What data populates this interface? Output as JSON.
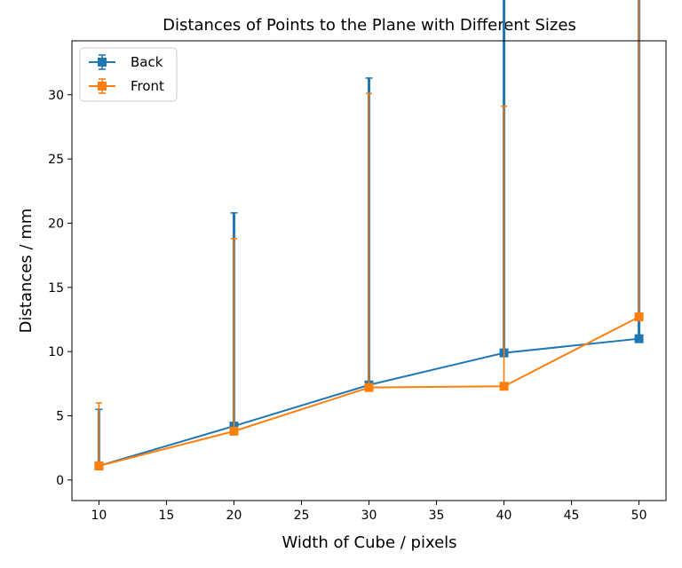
{
  "chart_data": {
    "type": "line",
    "title": "Distances of Points to the Plane with Different Sizes",
    "xlabel": "Width of Cube / pixels",
    "ylabel": "Distances / mm",
    "xlim": [
      8,
      52
    ],
    "ylim": [
      -1.6,
      34.2
    ],
    "xticks": [
      10,
      15,
      20,
      25,
      30,
      35,
      40,
      45,
      50
    ],
    "yticks": [
      0,
      5,
      10,
      15,
      20,
      25,
      30
    ],
    "grid": false,
    "legend_position": "top-left",
    "x": [
      10,
      20,
      30,
      40,
      50
    ],
    "series": [
      {
        "name": "Back",
        "color": "#1f77b4",
        "marker": "square",
        "values": [
          1.1,
          4.2,
          7.4,
          9.9,
          11.0
        ],
        "error_low": [
          0,
          0,
          0,
          0,
          0
        ],
        "error_high": [
          4.4,
          16.6,
          23.9,
          29.5,
          31.0
        ]
      },
      {
        "name": "Front",
        "color": "#ff7f0e",
        "marker": "square",
        "values": [
          1.1,
          3.8,
          7.2,
          7.3,
          12.7
        ],
        "error_low": [
          0,
          0,
          0,
          0,
          0
        ],
        "error_high": [
          4.9,
          15.0,
          22.9,
          21.8,
          32.5
        ]
      }
    ]
  }
}
